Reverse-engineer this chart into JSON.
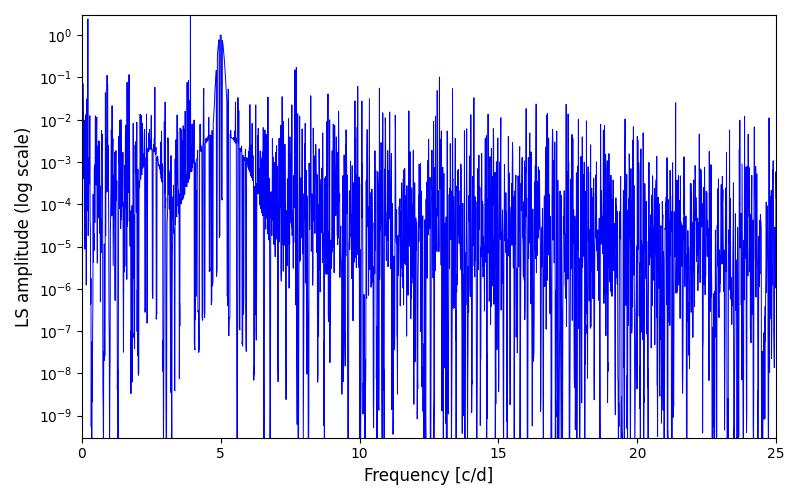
{
  "title": "",
  "xlabel": "Frequency [c/d]",
  "ylabel": "LS amplitude (log scale)",
  "line_color": "#0000ff",
  "line_width": 0.7,
  "xlim": [
    0,
    25
  ],
  "ylim_bottom": 3e-10,
  "ylim_top": 3.0,
  "yscale": "log",
  "figsize": [
    8.0,
    5.0
  ],
  "dpi": 100,
  "seed": 12345,
  "n_points": 2500,
  "peak_freq": 5.0,
  "peak_amplitude": 1.0,
  "background_color": "#ffffff"
}
